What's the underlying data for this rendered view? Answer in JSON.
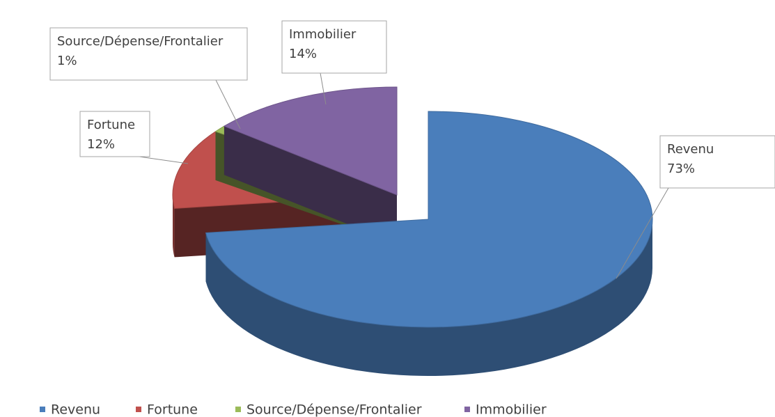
{
  "chart_data": {
    "type": "pie",
    "categories": [
      "Revenu",
      "Fortune",
      "Source/Dépense/Frontalier",
      "Immobilier"
    ],
    "values": [
      73,
      12,
      1,
      14
    ],
    "value_labels": [
      "73%",
      "12%",
      "1%",
      "14%"
    ],
    "colors": [
      "#4a7ebb",
      "#c0504d",
      "#9bbb59",
      "#8064a2"
    ],
    "legend": "bottom"
  }
}
